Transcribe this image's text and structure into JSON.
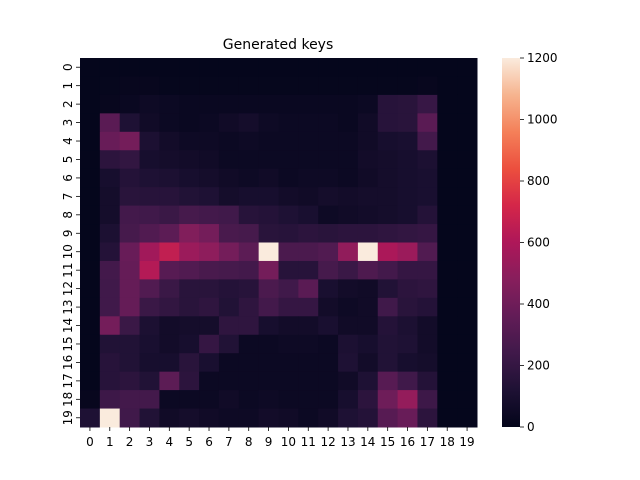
{
  "chart_data": {
    "type": "heatmap",
    "title": "Generated keys",
    "xlabel": "",
    "ylabel": "",
    "x_categories": [
      "0",
      "1",
      "2",
      "3",
      "4",
      "5",
      "6",
      "7",
      "8",
      "9",
      "10",
      "11",
      "12",
      "13",
      "14",
      "15",
      "16",
      "17",
      "18",
      "19"
    ],
    "y_categories": [
      "0",
      "1",
      "2",
      "3",
      "4",
      "5",
      "6",
      "7",
      "8",
      "9",
      "10",
      "11",
      "12",
      "13",
      "14",
      "15",
      "16",
      "17",
      "18",
      "19"
    ],
    "colorbar": {
      "min": 0,
      "max": 1200,
      "ticks": [
        0,
        200,
        400,
        600,
        800,
        1000,
        1200
      ]
    },
    "colormap": "rocket",
    "grid": false,
    "values": [
      [
        10,
        10,
        10,
        10,
        10,
        10,
        10,
        10,
        10,
        10,
        10,
        10,
        10,
        10,
        10,
        10,
        10,
        10,
        10,
        10
      ],
      [
        10,
        15,
        20,
        20,
        15,
        15,
        15,
        15,
        15,
        15,
        15,
        15,
        15,
        15,
        15,
        15,
        15,
        20,
        10,
        10
      ],
      [
        10,
        20,
        30,
        50,
        40,
        30,
        30,
        30,
        30,
        30,
        30,
        30,
        30,
        30,
        40,
        150,
        160,
        210,
        10,
        10
      ],
      [
        10,
        330,
        120,
        60,
        40,
        30,
        40,
        60,
        80,
        50,
        40,
        40,
        40,
        30,
        60,
        150,
        160,
        330,
        10,
        10
      ],
      [
        10,
        380,
        420,
        110,
        70,
        50,
        50,
        40,
        50,
        40,
        40,
        40,
        40,
        40,
        60,
        90,
        100,
        250,
        10,
        10
      ],
      [
        10,
        170,
        190,
        90,
        80,
        70,
        60,
        40,
        40,
        40,
        40,
        40,
        40,
        40,
        70,
        80,
        90,
        110,
        10,
        10
      ],
      [
        10,
        90,
        140,
        120,
        110,
        90,
        80,
        60,
        50,
        60,
        40,
        50,
        50,
        40,
        60,
        80,
        90,
        100,
        10,
        10
      ],
      [
        10,
        80,
        160,
        150,
        150,
        130,
        120,
        80,
        90,
        90,
        70,
        60,
        80,
        70,
        80,
        80,
        90,
        100,
        10,
        10
      ],
      [
        10,
        80,
        250,
        240,
        220,
        260,
        250,
        240,
        150,
        140,
        120,
        100,
        50,
        60,
        70,
        80,
        90,
        140,
        10,
        10
      ],
      [
        10,
        110,
        260,
        300,
        340,
        460,
        420,
        270,
        260,
        160,
        150,
        170,
        160,
        170,
        170,
        180,
        190,
        200,
        10,
        10
      ],
      [
        10,
        140,
        380,
        560,
        660,
        540,
        500,
        420,
        340,
        1200,
        280,
        280,
        300,
        510,
        1200,
        590,
        540,
        300,
        10,
        10
      ],
      [
        10,
        250,
        370,
        620,
        320,
        300,
        270,
        260,
        250,
        420,
        150,
        150,
        260,
        220,
        290,
        250,
        200,
        200,
        10,
        10
      ],
      [
        10,
        240,
        370,
        300,
        220,
        160,
        160,
        140,
        150,
        280,
        240,
        330,
        100,
        70,
        60,
        130,
        170,
        180,
        10,
        10
      ],
      [
        10,
        240,
        370,
        220,
        190,
        160,
        180,
        130,
        180,
        250,
        200,
        200,
        70,
        50,
        60,
        240,
        160,
        140,
        10,
        10
      ],
      [
        10,
        420,
        220,
        110,
        70,
        80,
        80,
        180,
        180,
        90,
        70,
        70,
        100,
        60,
        60,
        140,
        110,
        70,
        10,
        10
      ],
      [
        10,
        130,
        130,
        100,
        70,
        90,
        200,
        130,
        40,
        40,
        50,
        50,
        40,
        110,
        90,
        130,
        120,
        70,
        10,
        10
      ],
      [
        10,
        150,
        130,
        90,
        90,
        160,
        100,
        40,
        40,
        40,
        40,
        40,
        40,
        120,
        70,
        130,
        90,
        80,
        10,
        10
      ],
      [
        10,
        150,
        170,
        130,
        340,
        170,
        40,
        40,
        40,
        40,
        40,
        40,
        40,
        60,
        120,
        320,
        240,
        140,
        10,
        10
      ],
      [
        20,
        230,
        250,
        250,
        40,
        40,
        40,
        60,
        40,
        50,
        40,
        40,
        40,
        90,
        170,
        400,
        520,
        230,
        10,
        10
      ],
      [
        120,
        1200,
        240,
        130,
        60,
        80,
        60,
        50,
        50,
        70,
        60,
        40,
        60,
        120,
        140,
        320,
        380,
        170,
        10,
        10
      ]
    ]
  }
}
